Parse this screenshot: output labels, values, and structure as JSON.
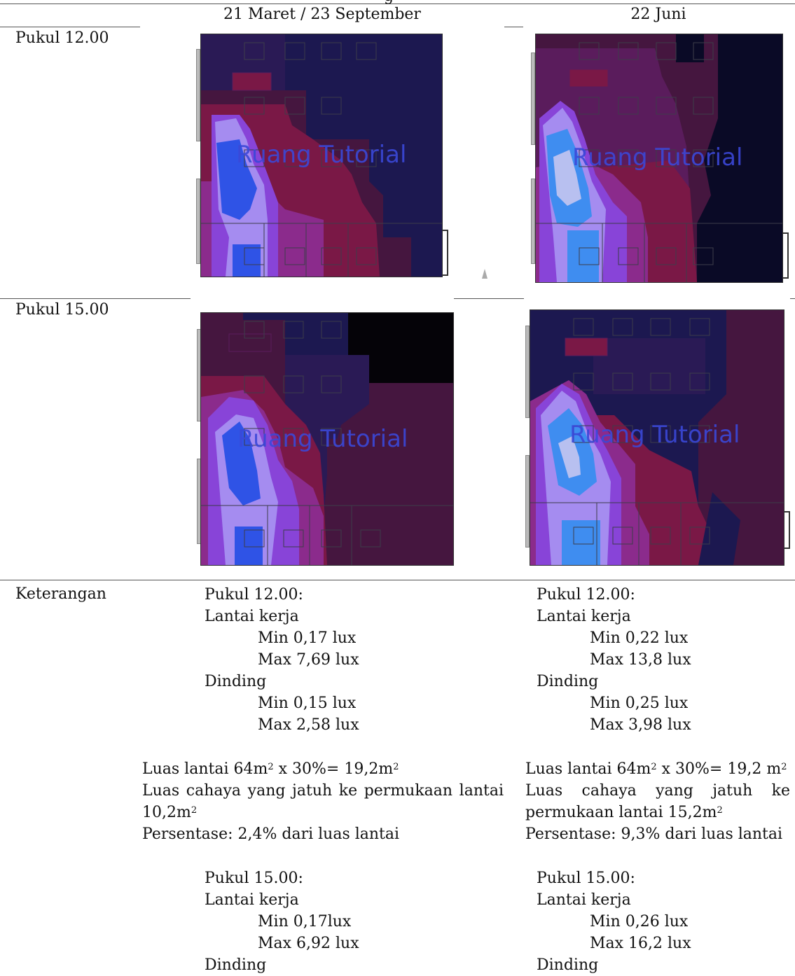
{
  "table": {
    "top_title_partial": "g",
    "columns": [
      "21 Maret / 23 September",
      "22 Juni"
    ],
    "rows": [
      {
        "label": "Pukul 12.00"
      },
      {
        "label": "Pukul 15.00"
      },
      {
        "label": "Keterangan"
      }
    ]
  },
  "maps": {
    "watermark": "Ruang Tutorial",
    "colors": {
      "darkest": "#0a0a26",
      "navy": "#1c1850",
      "maroon": "#45163f",
      "purple": "#5a1c5c",
      "crimson": "#7a1846",
      "magenta": "#8b2b8c",
      "violet": "#8844d8",
      "lavender": "#a58cf0",
      "blue": "#2f53e6",
      "sky": "#3f8df0",
      "pale": "#b8c0f0",
      "black": "#050308"
    }
  },
  "notes": {
    "left": {
      "p12_title": "Pukul 12.00:",
      "p12_floor": "Lantai kerja",
      "p12_floor_min": "Min 0,17 lux",
      "p12_floor_max": "Max 7,69 lux",
      "p12_wall": "Dinding",
      "p12_wall_min": "Min 0,15 lux",
      "p12_wall_max": "Max 2,58 lux",
      "area_prefix": "Luas lantai 64m",
      "area_sup1": "2",
      "area_mid": " x 30%= 19,2m",
      "area_sup2": "2",
      "light_line1": "Luas cahaya yang jatuh ke permukaan lantai",
      "light_line2": "10,2m",
      "light_sup": "2",
      "percent": "Persentase: 2,4% dari luas lantai",
      "p15_title": "Pukul 15.00:",
      "p15_floor": "Lantai kerja",
      "p15_floor_min": "Min 0,17lux",
      "p15_floor_max": "Max 6,92 lux",
      "p15_wall": "Dinding"
    },
    "right": {
      "p12_title": "Pukul 12.00:",
      "p12_floor": "Lantai kerja",
      "p12_floor_min": "Min 0,22 lux",
      "p12_floor_max": "Max 13,8 lux",
      "p12_wall": "Dinding",
      "p12_wall_min": "Min 0,25 lux",
      "p12_wall_max": "Max 3,98 lux",
      "area_prefix": "Luas lantai 64m",
      "area_sup1": "2",
      "area_mid": " x 30%= 19,2 m",
      "area_sup2": "2",
      "light_line1": "Luas cahaya yang jatuh ke",
      "light_line2": "permukaan lantai 15,2m",
      "light_sup": "2",
      "percent": "Persentase: 9,3% dari luas lantai",
      "p15_title": "Pukul 15.00:",
      "p15_floor": "Lantai kerja",
      "p15_floor_min": "Min 0,26 lux",
      "p15_floor_max": "Max 16,2 lux",
      "p15_wall": "Dinding"
    }
  }
}
